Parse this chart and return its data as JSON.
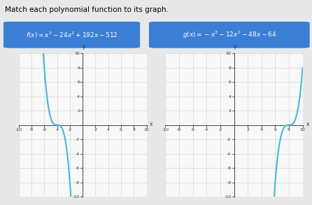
{
  "title": "Match each polynomial function to its graph.",
  "f_label": "f(x) = x³ − 24x² + 192x − 512",
  "g_label": "g(x) = −x³ − 12x² − 48x − 64",
  "box_color": "#3a7fd5",
  "box_text_color": "#ffffff",
  "curve_color": "#4bb8d4",
  "background_color": "#f8f8f8",
  "grid_color": "#cccccc",
  "grid_color2": "#e0e0e0",
  "axis_color": "#888888",
  "fig_bg": "#e8e8e8",
  "title_fontsize": 7.5,
  "label_fontsize": 6.5,
  "tick_fontsize": 4.5,
  "scale_f": 512,
  "scale_g": 512
}
